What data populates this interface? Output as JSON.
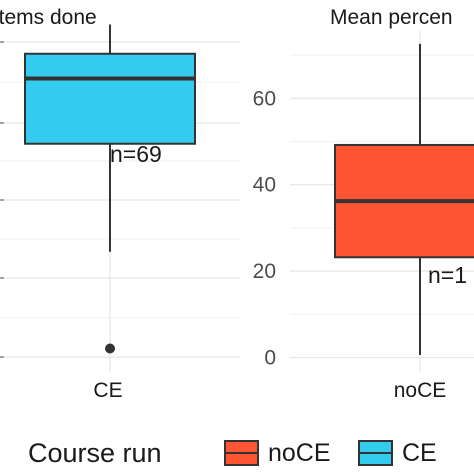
{
  "chart_data": [
    {
      "type": "boxplot",
      "title": "items done",
      "categories": [
        "CE"
      ],
      "series": [
        {
          "name": "CE",
          "color": "#33ccee",
          "box": {
            "lower_whisker": 23.5,
            "q1": 47.5,
            "median": 62,
            "q3": 67.5,
            "upper_whisker": 74
          },
          "outliers": [
            2
          ]
        }
      ],
      "annotation": "n=69",
      "ytick_labels": [],
      "grid": true
    },
    {
      "type": "boxplot",
      "title": "Mean percen",
      "categories": [
        "noCE"
      ],
      "series": [
        {
          "name": "noCE",
          "color": "#ff5533",
          "box": {
            "lower_whisker": 0.6,
            "q1": 23.2,
            "median": 36.2,
            "q3": 49.2,
            "upper_whisker": 72.6
          },
          "outliers": []
        }
      ],
      "annotation": "n=1",
      "yticks": [
        0,
        20,
        40,
        60
      ],
      "ylim": [
        -3,
        80
      ],
      "grid": true
    }
  ],
  "legend": {
    "title": "Course run",
    "position": "bottom",
    "items": [
      {
        "label": "noCE",
        "color": "#ff5533"
      },
      {
        "label": "CE",
        "color": "#33ccee"
      }
    ]
  }
}
